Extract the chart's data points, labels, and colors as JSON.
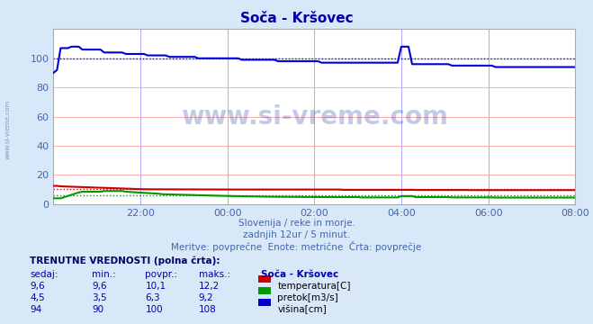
{
  "title": "Soča - Kršovec",
  "bg_color": "#d8e8f8",
  "plot_bg_color": "#ffffff",
  "xlim": [
    0,
    144
  ],
  "ylim": [
    0,
    120
  ],
  "yticks": [
    0,
    20,
    40,
    60,
    80,
    100
  ],
  "xtick_labels": [
    "22:00",
    "00:00",
    "02:00",
    "04:00",
    "06:00",
    "08:00"
  ],
  "xtick_positions": [
    24,
    48,
    72,
    96,
    120,
    144
  ],
  "watermark": "www.si-vreme.com",
  "sub1": "Slovenija / reke in morje.",
  "sub2": "zadnjih 12ur / 5 minut.",
  "sub3": "Meritve: povprečne  Enote: metrične  Črta: povprečje",
  "legend_title": "TRENUTNE VREDNOSTI (polna črta):",
  "legend_headers": [
    "sedaj:",
    "min.:",
    "povpr.:",
    "maks.:",
    "Soča - Kršovec"
  ],
  "legend_rows": [
    [
      "9,6",
      "9,6",
      "10,1",
      "12,2",
      "temperatura[C]",
      "#cc0000"
    ],
    [
      "4,5",
      "3,5",
      "6,3",
      "9,2",
      "pretok[m3/s]",
      "#009900"
    ],
    [
      "94",
      "90",
      "100",
      "108",
      "višina[cm]",
      "#0000cc"
    ]
  ],
  "temp_color": "#cc0000",
  "flow_color": "#009900",
  "height_color": "#0000dd",
  "title_color": "#0000aa",
  "axis_label_color": "#4466aa"
}
